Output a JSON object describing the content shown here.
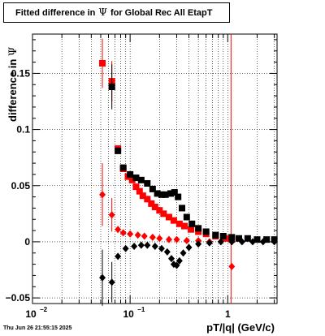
{
  "chart_data": {
    "type": "scatter",
    "title": {
      "prefix": "Fitted difference in",
      "symbol": "Ψ",
      "suffix": "for Global Rec All EtapT"
    },
    "xlabel": "pT/|q| (GeV/c)",
    "ylabel": {
      "prefix": "difference in",
      "symbol": "Ψ"
    },
    "x_scale": "log",
    "xlim": [
      0.01,
      3.2
    ],
    "ylim": [
      -0.055,
      0.185
    ],
    "grid": true,
    "x_ticks": [
      {
        "value": 0.01,
        "base": "10",
        "exp": "−2"
      },
      {
        "value": 0.1,
        "base": "10",
        "exp": "−1"
      },
      {
        "value": 1,
        "text": "1"
      }
    ],
    "y_ticks": [
      {
        "value": -0.05,
        "text": "−0.05"
      },
      {
        "value": 0,
        "text": "0"
      },
      {
        "value": 0.05,
        "text": "0.05"
      },
      {
        "value": 0.1,
        "text": "0.1"
      },
      {
        "value": 0.15,
        "text": "0.15"
      }
    ],
    "vertical_line_x": 1.08,
    "series": [
      {
        "marker": "square",
        "color": "#ff0000",
        "points": [
          {
            "x": 0.052,
            "y": 0.159,
            "xerr": 0.004,
            "yerr": 0.022
          },
          {
            "x": 0.065,
            "y": 0.143,
            "yerr": 0.018
          },
          {
            "x": 0.075,
            "y": 0.083
          },
          {
            "x": 0.085,
            "y": 0.065
          },
          {
            "x": 0.095,
            "y": 0.058
          },
          {
            "x": 0.105,
            "y": 0.055
          },
          {
            "x": 0.115,
            "y": 0.049
          },
          {
            "x": 0.125,
            "y": 0.045
          },
          {
            "x": 0.135,
            "y": 0.041
          },
          {
            "x": 0.15,
            "y": 0.038
          },
          {
            "x": 0.165,
            "y": 0.034
          },
          {
            "x": 0.18,
            "y": 0.031
          },
          {
            "x": 0.2,
            "y": 0.028
          },
          {
            "x": 0.22,
            "y": 0.025
          },
          {
            "x": 0.25,
            "y": 0.022
          },
          {
            "x": 0.28,
            "y": 0.019
          },
          {
            "x": 0.32,
            "y": 0.016
          },
          {
            "x": 0.36,
            "y": 0.014
          },
          {
            "x": 0.42,
            "y": 0.011
          },
          {
            "x": 0.5,
            "y": 0.009
          },
          {
            "x": 0.6,
            "y": 0.007
          },
          {
            "x": 0.75,
            "y": 0.005
          },
          {
            "x": 0.95,
            "y": 0.003
          },
          {
            "x": 1.1,
            "y": 0.002
          }
        ]
      },
      {
        "marker": "square",
        "color": "#000000",
        "points": [
          {
            "x": 0.065,
            "y": 0.138,
            "yerr": 0.02
          },
          {
            "x": 0.075,
            "y": 0.081
          },
          {
            "x": 0.085,
            "y": 0.066
          },
          {
            "x": 0.1,
            "y": 0.06
          },
          {
            "x": 0.115,
            "y": 0.057
          },
          {
            "x": 0.13,
            "y": 0.055
          },
          {
            "x": 0.15,
            "y": 0.052
          },
          {
            "x": 0.17,
            "y": 0.047
          },
          {
            "x": 0.19,
            "y": 0.043
          },
          {
            "x": 0.21,
            "y": 0.042
          },
          {
            "x": 0.23,
            "y": 0.042
          },
          {
            "x": 0.26,
            "y": 0.043
          },
          {
            "x": 0.285,
            "y": 0.044
          },
          {
            "x": 0.31,
            "y": 0.04
          },
          {
            "x": 0.34,
            "y": 0.03
          },
          {
            "x": 0.38,
            "y": 0.022
          },
          {
            "x": 0.43,
            "y": 0.016
          },
          {
            "x": 0.5,
            "y": 0.012
          },
          {
            "x": 0.6,
            "y": 0.009
          },
          {
            "x": 0.75,
            "y": 0.006
          },
          {
            "x": 0.9,
            "y": 0.005
          },
          {
            "x": 1.1,
            "y": 0.004
          },
          {
            "x": 1.3,
            "y": 0.003
          },
          {
            "x": 1.6,
            "y": 0.003
          },
          {
            "x": 2.0,
            "y": 0.002
          },
          {
            "x": 2.5,
            "y": 0.002
          },
          {
            "x": 3.0,
            "y": 0.002
          }
        ]
      },
      {
        "marker": "diamond",
        "color": "#ff0000",
        "points": [
          {
            "x": 0.052,
            "y": 0.042,
            "yerr": 0.028
          },
          {
            "x": 0.065,
            "y": 0.024,
            "yerr": 0.015
          },
          {
            "x": 0.075,
            "y": 0.011
          },
          {
            "x": 0.085,
            "y": 0.008
          },
          {
            "x": 0.1,
            "y": 0.007
          },
          {
            "x": 0.12,
            "y": 0.006
          },
          {
            "x": 0.14,
            "y": 0.005
          },
          {
            "x": 0.17,
            "y": 0.004
          },
          {
            "x": 0.2,
            "y": 0.003
          },
          {
            "x": 0.25,
            "y": 0.002
          },
          {
            "x": 0.3,
            "y": 0.002
          },
          {
            "x": 0.38,
            "y": 0.001
          },
          {
            "x": 0.5,
            "y": 0.001
          },
          {
            "x": 0.65,
            "y": 0.0
          },
          {
            "x": 0.85,
            "y": 0.0
          },
          {
            "x": 1.1,
            "y": -0.022
          }
        ]
      },
      {
        "marker": "diamond",
        "color": "#000000",
        "points": [
          {
            "x": 0.052,
            "y": -0.032,
            "yerr": 0.025
          },
          {
            "x": 0.065,
            "y": -0.036,
            "yerr": 0.018
          },
          {
            "x": 0.075,
            "y": -0.013
          },
          {
            "x": 0.09,
            "y": -0.006
          },
          {
            "x": 0.11,
            "y": -0.004
          },
          {
            "x": 0.13,
            "y": -0.003
          },
          {
            "x": 0.15,
            "y": -0.003
          },
          {
            "x": 0.18,
            "y": -0.004
          },
          {
            "x": 0.21,
            "y": -0.006
          },
          {
            "x": 0.24,
            "y": -0.009
          },
          {
            "x": 0.265,
            "y": -0.015
          },
          {
            "x": 0.28,
            "y": -0.02
          },
          {
            "x": 0.3,
            "y": -0.021
          },
          {
            "x": 0.32,
            "y": -0.017
          },
          {
            "x": 0.35,
            "y": -0.01
          },
          {
            "x": 0.4,
            "y": -0.005
          },
          {
            "x": 0.5,
            "y": -0.002
          },
          {
            "x": 0.65,
            "y": -0.001
          },
          {
            "x": 0.85,
            "y": 0.0
          },
          {
            "x": 1.1,
            "y": 0.0
          },
          {
            "x": 1.4,
            "y": 0.0
          },
          {
            "x": 1.8,
            "y": 0.0
          },
          {
            "x": 2.3,
            "y": 0.0
          },
          {
            "x": 3.0,
            "y": 0.0
          }
        ]
      }
    ]
  },
  "footer": {
    "timestamp": "Thu Jun 26 21:55:15 2025"
  }
}
